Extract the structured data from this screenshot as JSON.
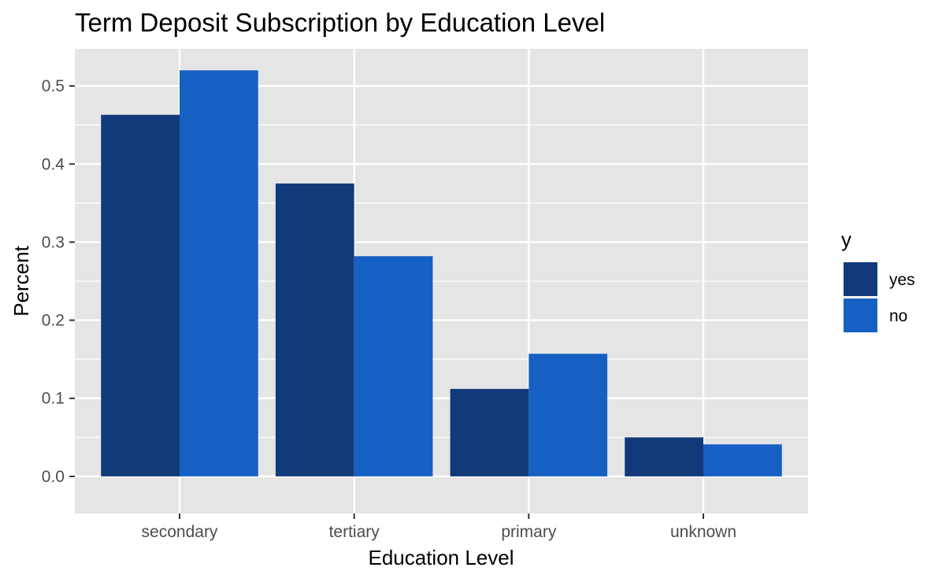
{
  "chart_data": {
    "type": "bar",
    "title": "Term Deposit Subscription by Education Level",
    "xlabel": "Education Level",
    "ylabel": "Percent",
    "categories": [
      "secondary",
      "tertiary",
      "primary",
      "unknown"
    ],
    "series": [
      {
        "name": "yes",
        "color": "#123a7a",
        "values": [
          0.463,
          0.375,
          0.112,
          0.05
        ]
      },
      {
        "name": "no",
        "color": "#1660c4",
        "values": [
          0.52,
          0.282,
          0.157,
          0.041
        ]
      }
    ],
    "ylim": [
      -0.0475,
      0.5475
    ],
    "yticks": [
      0.0,
      0.1,
      0.2,
      0.3,
      0.4,
      0.5
    ],
    "ytick_labels": [
      "0.0",
      "0.1",
      "0.2",
      "0.3",
      "0.4",
      "0.5"
    ],
    "grid": true,
    "legend": {
      "title": "y",
      "position": "right"
    },
    "colors": {
      "panel": "#e5e5e5",
      "grid": "#ffffff"
    }
  }
}
